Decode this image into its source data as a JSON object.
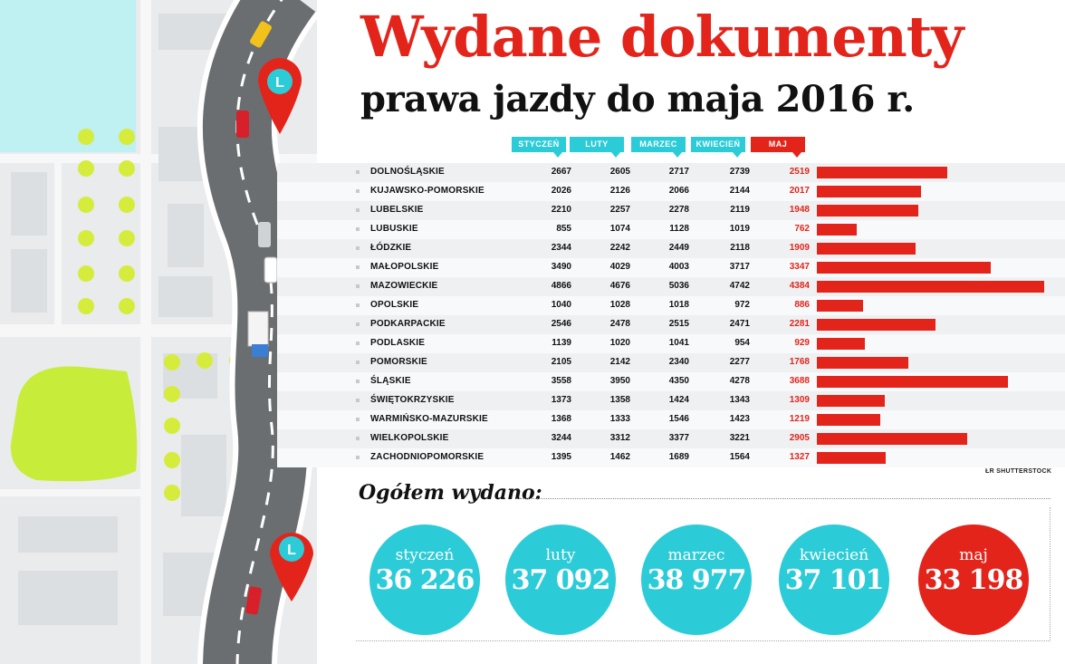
{
  "title": "Wydane dokumenty",
  "subtitle": "prawa jazdy do maja 2016 r.",
  "credit": "ŁR   SHUTTERSTOCK",
  "colors": {
    "red": "#e3241b",
    "cyan": "#2ccbd8"
  },
  "chart_data": {
    "type": "table",
    "columns": [
      "STYCZEŃ",
      "LUTY",
      "MARZEC",
      "KWIECIEŃ",
      "MAJ"
    ],
    "bar_series": "MAJ",
    "rows": [
      {
        "region": "DOLNOŚLĄSKIE",
        "values": [
          2667,
          2605,
          2717,
          2739,
          2519
        ]
      },
      {
        "region": "KUJAWSKO-POMORSKIE",
        "values": [
          2026,
          2126,
          2066,
          2144,
          2017
        ]
      },
      {
        "region": "LUBELSKIE",
        "values": [
          2210,
          2257,
          2278,
          2119,
          1948
        ]
      },
      {
        "region": "LUBUSKIE",
        "values": [
          855,
          1074,
          1128,
          1019,
          762
        ]
      },
      {
        "region": "ŁÓDZKIE",
        "values": [
          2344,
          2242,
          2449,
          2118,
          1909
        ]
      },
      {
        "region": "MAŁOPOLSKIE",
        "values": [
          3490,
          4029,
          4003,
          3717,
          3347
        ]
      },
      {
        "region": "MAZOWIECKIE",
        "values": [
          4866,
          4676,
          5036,
          4742,
          4384
        ]
      },
      {
        "region": "OPOLSKIE",
        "values": [
          1040,
          1028,
          1018,
          972,
          886
        ]
      },
      {
        "region": "PODKARPACKIE",
        "values": [
          2546,
          2478,
          2515,
          2471,
          2281
        ]
      },
      {
        "region": "PODLASKIE",
        "values": [
          1139,
          1020,
          1041,
          954,
          929
        ]
      },
      {
        "region": "POMORSKIE",
        "values": [
          2105,
          2142,
          2340,
          2277,
          1768
        ]
      },
      {
        "region": "ŚLĄSKIE",
        "values": [
          3558,
          3950,
          4350,
          4278,
          3688
        ]
      },
      {
        "region": "ŚWIĘTOKRZYSKIE",
        "values": [
          1373,
          1358,
          1424,
          1343,
          1309
        ]
      },
      {
        "region": "WARMIŃSKO-MAZURSKIE",
        "values": [
          1368,
          1333,
          1546,
          1423,
          1219
        ]
      },
      {
        "region": "WIELKOPOLSKIE",
        "values": [
          3244,
          3312,
          3377,
          3221,
          2905
        ]
      },
      {
        "region": "ZACHODNIOPOMORSKIE",
        "values": [
          1395,
          1462,
          1689,
          1564,
          1327
        ]
      }
    ]
  },
  "totals": {
    "label": "Ogółem wydano:",
    "items": [
      {
        "month": "styczeń",
        "value": "36 226"
      },
      {
        "month": "luty",
        "value": "37 092"
      },
      {
        "month": "marzec",
        "value": "38 977"
      },
      {
        "month": "kwiecień",
        "value": "37 101"
      },
      {
        "month": "maj",
        "value": "33 198"
      }
    ]
  }
}
